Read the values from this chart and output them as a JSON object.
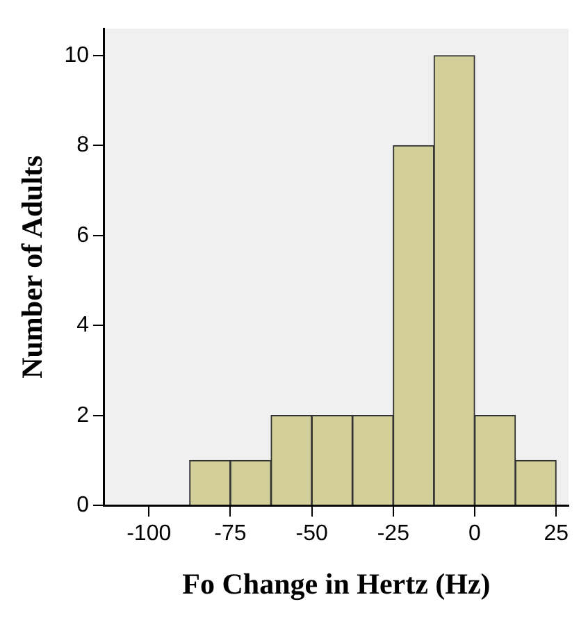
{
  "chart_data": {
    "type": "histogram",
    "xlabel": "Fo Change in Hertz (Hz)",
    "ylabel": "Number of Adults",
    "bins": [
      -87.5,
      -75,
      -62.5,
      -50,
      -37.5,
      -25,
      -12.5,
      0,
      12.5,
      25
    ],
    "values": [
      1,
      1,
      2,
      2,
      2,
      8,
      10,
      2,
      1
    ],
    "color": "#d3cf9a",
    "xlim": [
      -113.7,
      28.8
    ],
    "xticks": [
      -100,
      -75,
      -50,
      -25,
      0,
      25
    ],
    "ylim": [
      0,
      10.6
    ],
    "yticks": [
      0,
      2,
      4,
      6,
      8,
      10
    ],
    "grid": false,
    "legend": false
  }
}
